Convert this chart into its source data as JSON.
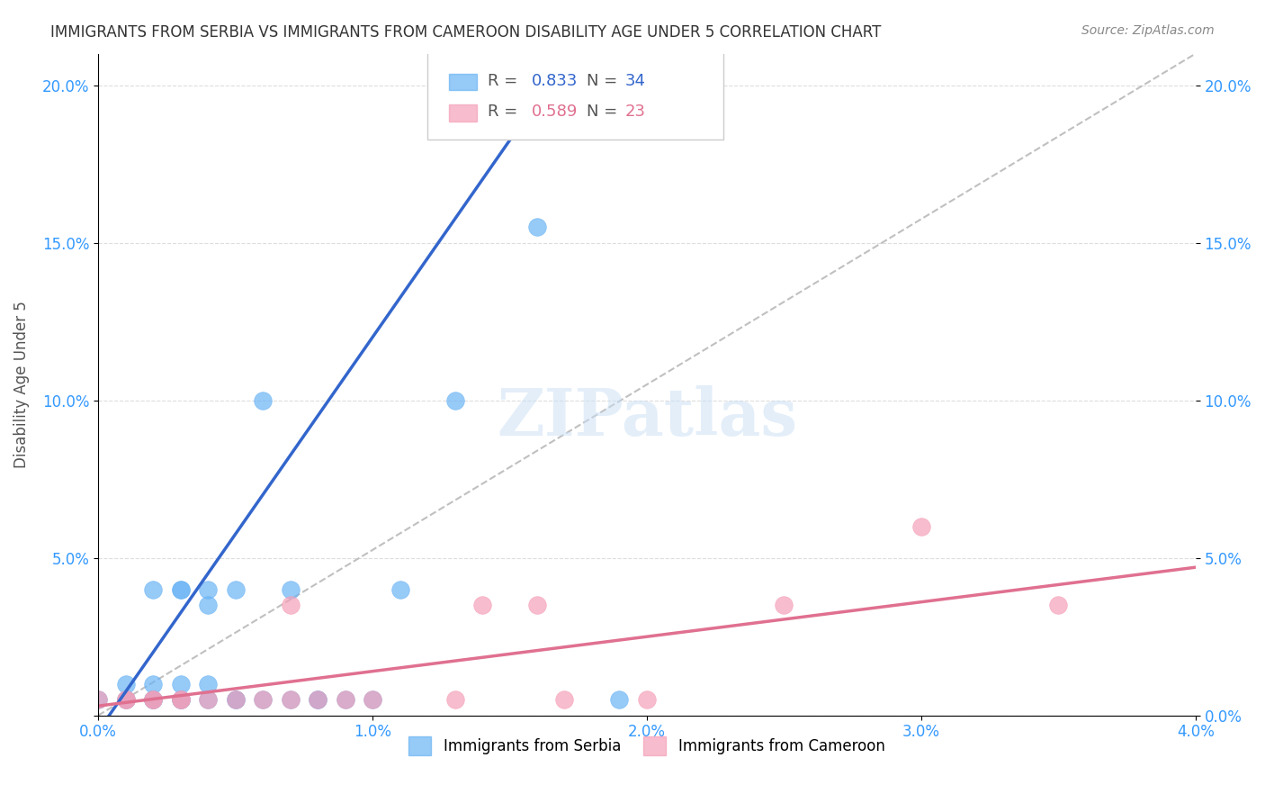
{
  "title": "IMMIGRANTS FROM SERBIA VS IMMIGRANTS FROM CAMEROON DISABILITY AGE UNDER 5 CORRELATION CHART",
  "source": "Source: ZipAtlas.com",
  "xlabel": "",
  "ylabel": "Disability Age Under 5",
  "xlim": [
    0.0,
    0.04
  ],
  "ylim": [
    0.0,
    0.21
  ],
  "xtick_labels": [
    "0.0%",
    "1.0%",
    "2.0%",
    "3.0%",
    "4.0%"
  ],
  "xtick_vals": [
    0.0,
    0.01,
    0.02,
    0.03,
    0.04
  ],
  "ytick_labels_left": [
    "",
    "5.0%",
    "10.0%",
    "15.0%",
    "20.0%"
  ],
  "ytick_vals": [
    0.0,
    0.05,
    0.1,
    0.15,
    0.2
  ],
  "ytick_labels_right": [
    "0.0%",
    "5.0%",
    "10.0%",
    "15.0%",
    "20.0%"
  ],
  "serbia_color": "#6ab4f5",
  "cameroon_color": "#f5a0b8",
  "serbia_line_color": "#3366cc",
  "cameroon_line_color": "#e07090",
  "diagonal_color": "#c0c0c0",
  "R_serbia": 0.833,
  "N_serbia": 34,
  "R_cameroon": 0.589,
  "N_cameroon": 23,
  "serbia_scatter_x": [
    0.0,
    0.001,
    0.001,
    0.001,
    0.002,
    0.002,
    0.002,
    0.002,
    0.002,
    0.003,
    0.003,
    0.003,
    0.003,
    0.003,
    0.003,
    0.004,
    0.004,
    0.004,
    0.004,
    0.005,
    0.005,
    0.005,
    0.006,
    0.006,
    0.007,
    0.007,
    0.008,
    0.008,
    0.009,
    0.01,
    0.011,
    0.013,
    0.016,
    0.019
  ],
  "serbia_scatter_y": [
    0.005,
    0.005,
    0.01,
    0.005,
    0.005,
    0.01,
    0.005,
    0.04,
    0.005,
    0.005,
    0.005,
    0.01,
    0.04,
    0.04,
    0.005,
    0.01,
    0.035,
    0.04,
    0.005,
    0.005,
    0.005,
    0.04,
    0.005,
    0.1,
    0.04,
    0.005,
    0.005,
    0.005,
    0.005,
    0.005,
    0.04,
    0.1,
    0.155,
    0.005
  ],
  "cameroon_scatter_x": [
    0.0,
    0.001,
    0.001,
    0.002,
    0.002,
    0.003,
    0.003,
    0.004,
    0.005,
    0.006,
    0.007,
    0.007,
    0.008,
    0.009,
    0.01,
    0.013,
    0.014,
    0.016,
    0.017,
    0.02,
    0.025,
    0.03,
    0.035
  ],
  "cameroon_scatter_y": [
    0.005,
    0.005,
    0.005,
    0.005,
    0.005,
    0.005,
    0.005,
    0.005,
    0.005,
    0.005,
    0.005,
    0.035,
    0.005,
    0.005,
    0.005,
    0.005,
    0.035,
    0.035,
    0.005,
    0.005,
    0.035,
    0.06,
    0.035
  ],
  "watermark": "ZIPatlas",
  "background_color": "#ffffff",
  "grid_color": "#dddddd"
}
